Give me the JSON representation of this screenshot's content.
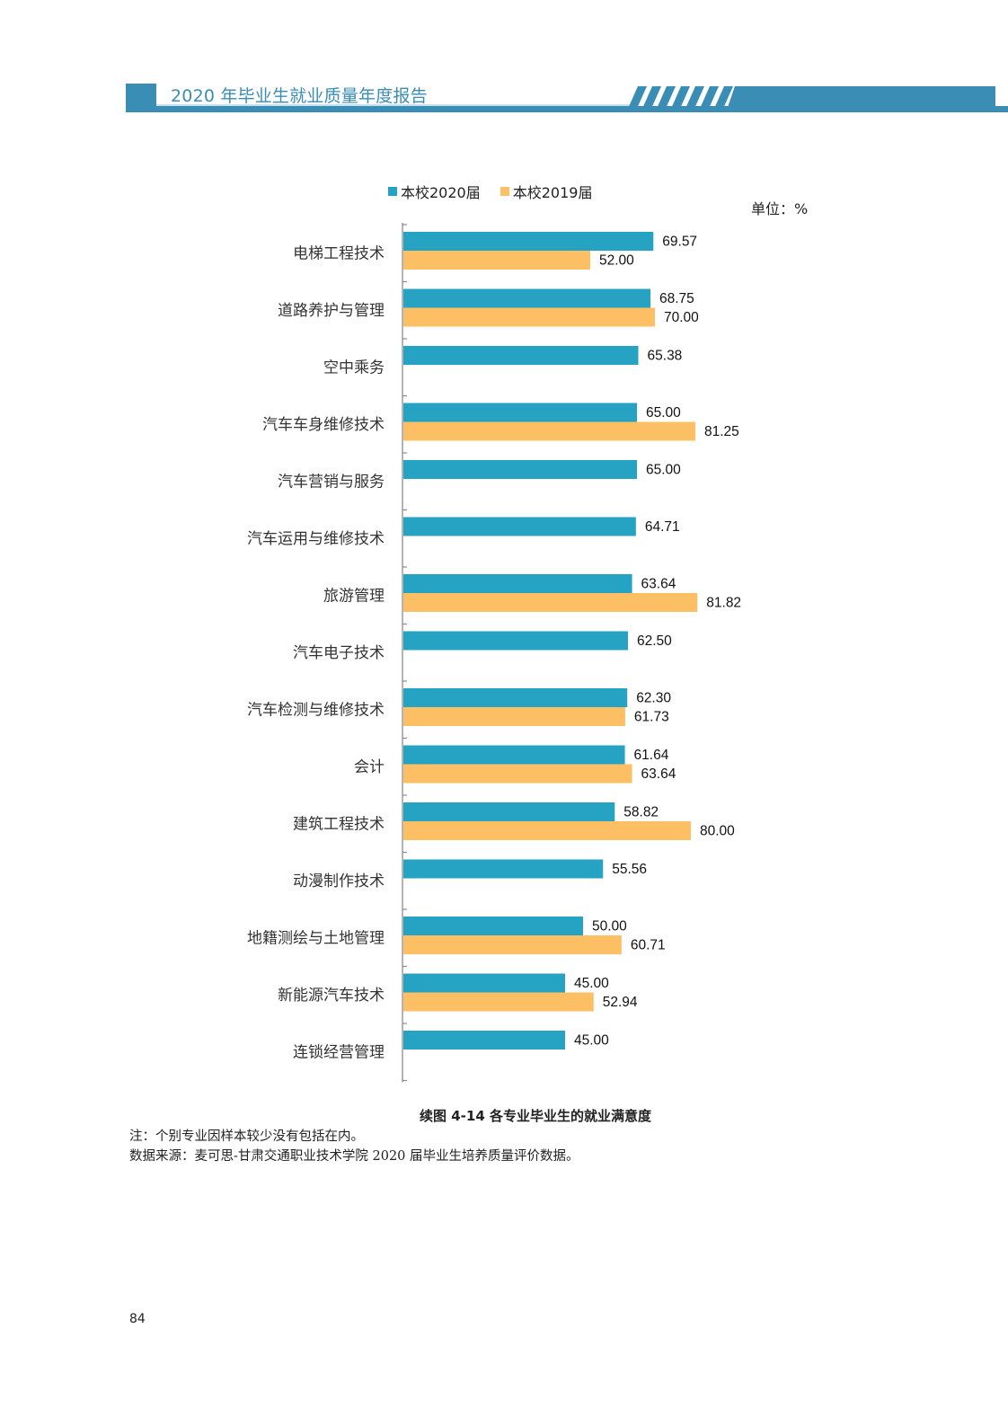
{
  "header": {
    "title": "2020 年毕业生就业质量年度报告",
    "color": "#3a8db4"
  },
  "unit_label": "单位：%",
  "chart_data": {
    "type": "bar",
    "orientation": "horizontal",
    "title": "续图 4-14 各专业毕业生的就业满意度",
    "xlabel": "",
    "ylabel": "",
    "unit": "%",
    "xlim": [
      0,
      100
    ],
    "grid": false,
    "legend_position": "top",
    "categories": [
      "电梯工程技术",
      "道路养护与管理",
      "空中乘务",
      "汽车车身维修技术",
      "汽车营销与服务",
      "汽车运用与维修技术",
      "旅游管理",
      "汽车电子技术",
      "汽车检测与维修技术",
      "会计",
      "建筑工程技术",
      "动漫制作技术",
      "地籍测绘与土地管理",
      "新能源汽车技术",
      "连锁经营管理"
    ],
    "series": [
      {
        "name": "本校2020届",
        "color": "#26a3c3",
        "values": [
          69.57,
          68.75,
          65.38,
          65.0,
          65.0,
          64.71,
          63.64,
          62.5,
          62.3,
          61.64,
          58.82,
          55.56,
          50.0,
          45.0,
          45.0
        ],
        "labels": [
          "69.57",
          "68.75",
          "65.38",
          "65.00",
          "65.00",
          "64.71",
          "63.64",
          "62.50",
          "62.30",
          "61.64",
          "58.82",
          "55.56",
          "50.00",
          "45.00",
          "45.00"
        ]
      },
      {
        "name": "本校2019届",
        "color": "#fdbf63",
        "values": [
          52.0,
          70.0,
          null,
          81.25,
          null,
          null,
          81.82,
          null,
          61.73,
          63.64,
          80.0,
          null,
          60.71,
          52.94,
          null
        ],
        "labels": [
          "52.00",
          "70.00",
          null,
          "81.25",
          null,
          null,
          "81.82",
          null,
          "61.73",
          "63.64",
          "80.00",
          null,
          "60.71",
          "52.94",
          null
        ]
      }
    ]
  },
  "notes": {
    "note": "注：个别专业因样本较少没有包括在内。",
    "source": "数据来源：麦可思-甘肃交通职业技术学院 2020 届毕业生培养质量评价数据。"
  },
  "page_number": "84"
}
